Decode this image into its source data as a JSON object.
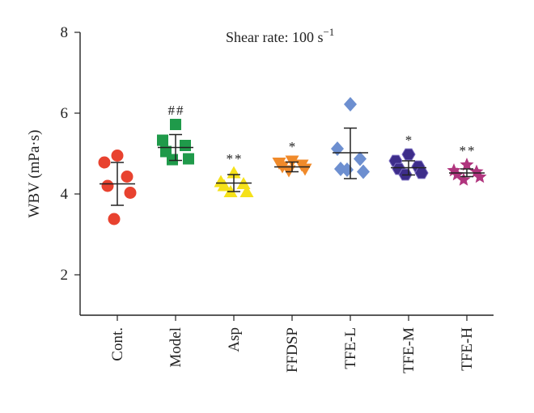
{
  "chart_data": {
    "type": "scatter",
    "title": "Shear rate: 100 s",
    "title_superscript": "−1",
    "ylabel": "WBV (mPa·s)",
    "xlabel": "",
    "ylim": [
      1,
      8
    ],
    "yticks": [
      2,
      4,
      6,
      8
    ],
    "grid": false,
    "categories": [
      "Cont.",
      "Model",
      "Asp",
      "FFDSP",
      "TFE-L",
      "TFE-M",
      "TFE-H"
    ],
    "groups": [
      {
        "name": "Cont.",
        "color": "#e8422f",
        "marker": "circle",
        "points": [
          4.95,
          4.78,
          4.43,
          4.2,
          4.03,
          3.38
        ],
        "mean": 4.25,
        "sd_low": 3.72,
        "sd_high": 4.78,
        "sig": ""
      },
      {
        "name": "Model",
        "color": "#1f9a4a",
        "marker": "square",
        "points": [
          5.72,
          5.33,
          5.2,
          5.05,
          4.87,
          4.85
        ],
        "mean": 5.15,
        "sd_low": 4.83,
        "sd_high": 5.47,
        "sig": "##"
      },
      {
        "name": "Asp",
        "color": "#f5e11a",
        "marker": "triangle-up",
        "points": [
          4.52,
          4.3,
          4.25,
          4.2,
          4.05,
          4.05
        ],
        "mean": 4.27,
        "sd_low": 4.06,
        "sd_high": 4.48,
        "sig": "**"
      },
      {
        "name": "FFDSP",
        "color": "#f08a2a",
        "marker": "triangle-down",
        "points": [
          4.82,
          4.77,
          4.72,
          4.68,
          4.62,
          4.58
        ],
        "mean": 4.67,
        "sd_low": 4.55,
        "sd_high": 4.79,
        "sig": "*"
      },
      {
        "name": "TFE-L",
        "color": "#6d8fd0",
        "marker": "diamond",
        "points": [
          6.22,
          5.12,
          4.87,
          4.62,
          4.55,
          4.6
        ],
        "mean": 5.02,
        "sd_low": 4.38,
        "sd_high": 5.63,
        "sig": ""
      },
      {
        "name": "TFE-M",
        "color": "#3d2d8a",
        "marker": "hexagon",
        "points": [
          4.98,
          4.82,
          4.68,
          4.62,
          4.52,
          4.48
        ],
        "mean": 4.65,
        "sd_low": 4.47,
        "sd_high": 4.82,
        "sig": "*"
      },
      {
        "name": "TFE-H",
        "color": "#b0357e",
        "marker": "star",
        "points": [
          4.72,
          4.58,
          4.55,
          4.48,
          4.42,
          4.35
        ],
        "mean": 4.52,
        "sd_low": 4.43,
        "sd_high": 4.62,
        "sig": "**"
      }
    ]
  }
}
